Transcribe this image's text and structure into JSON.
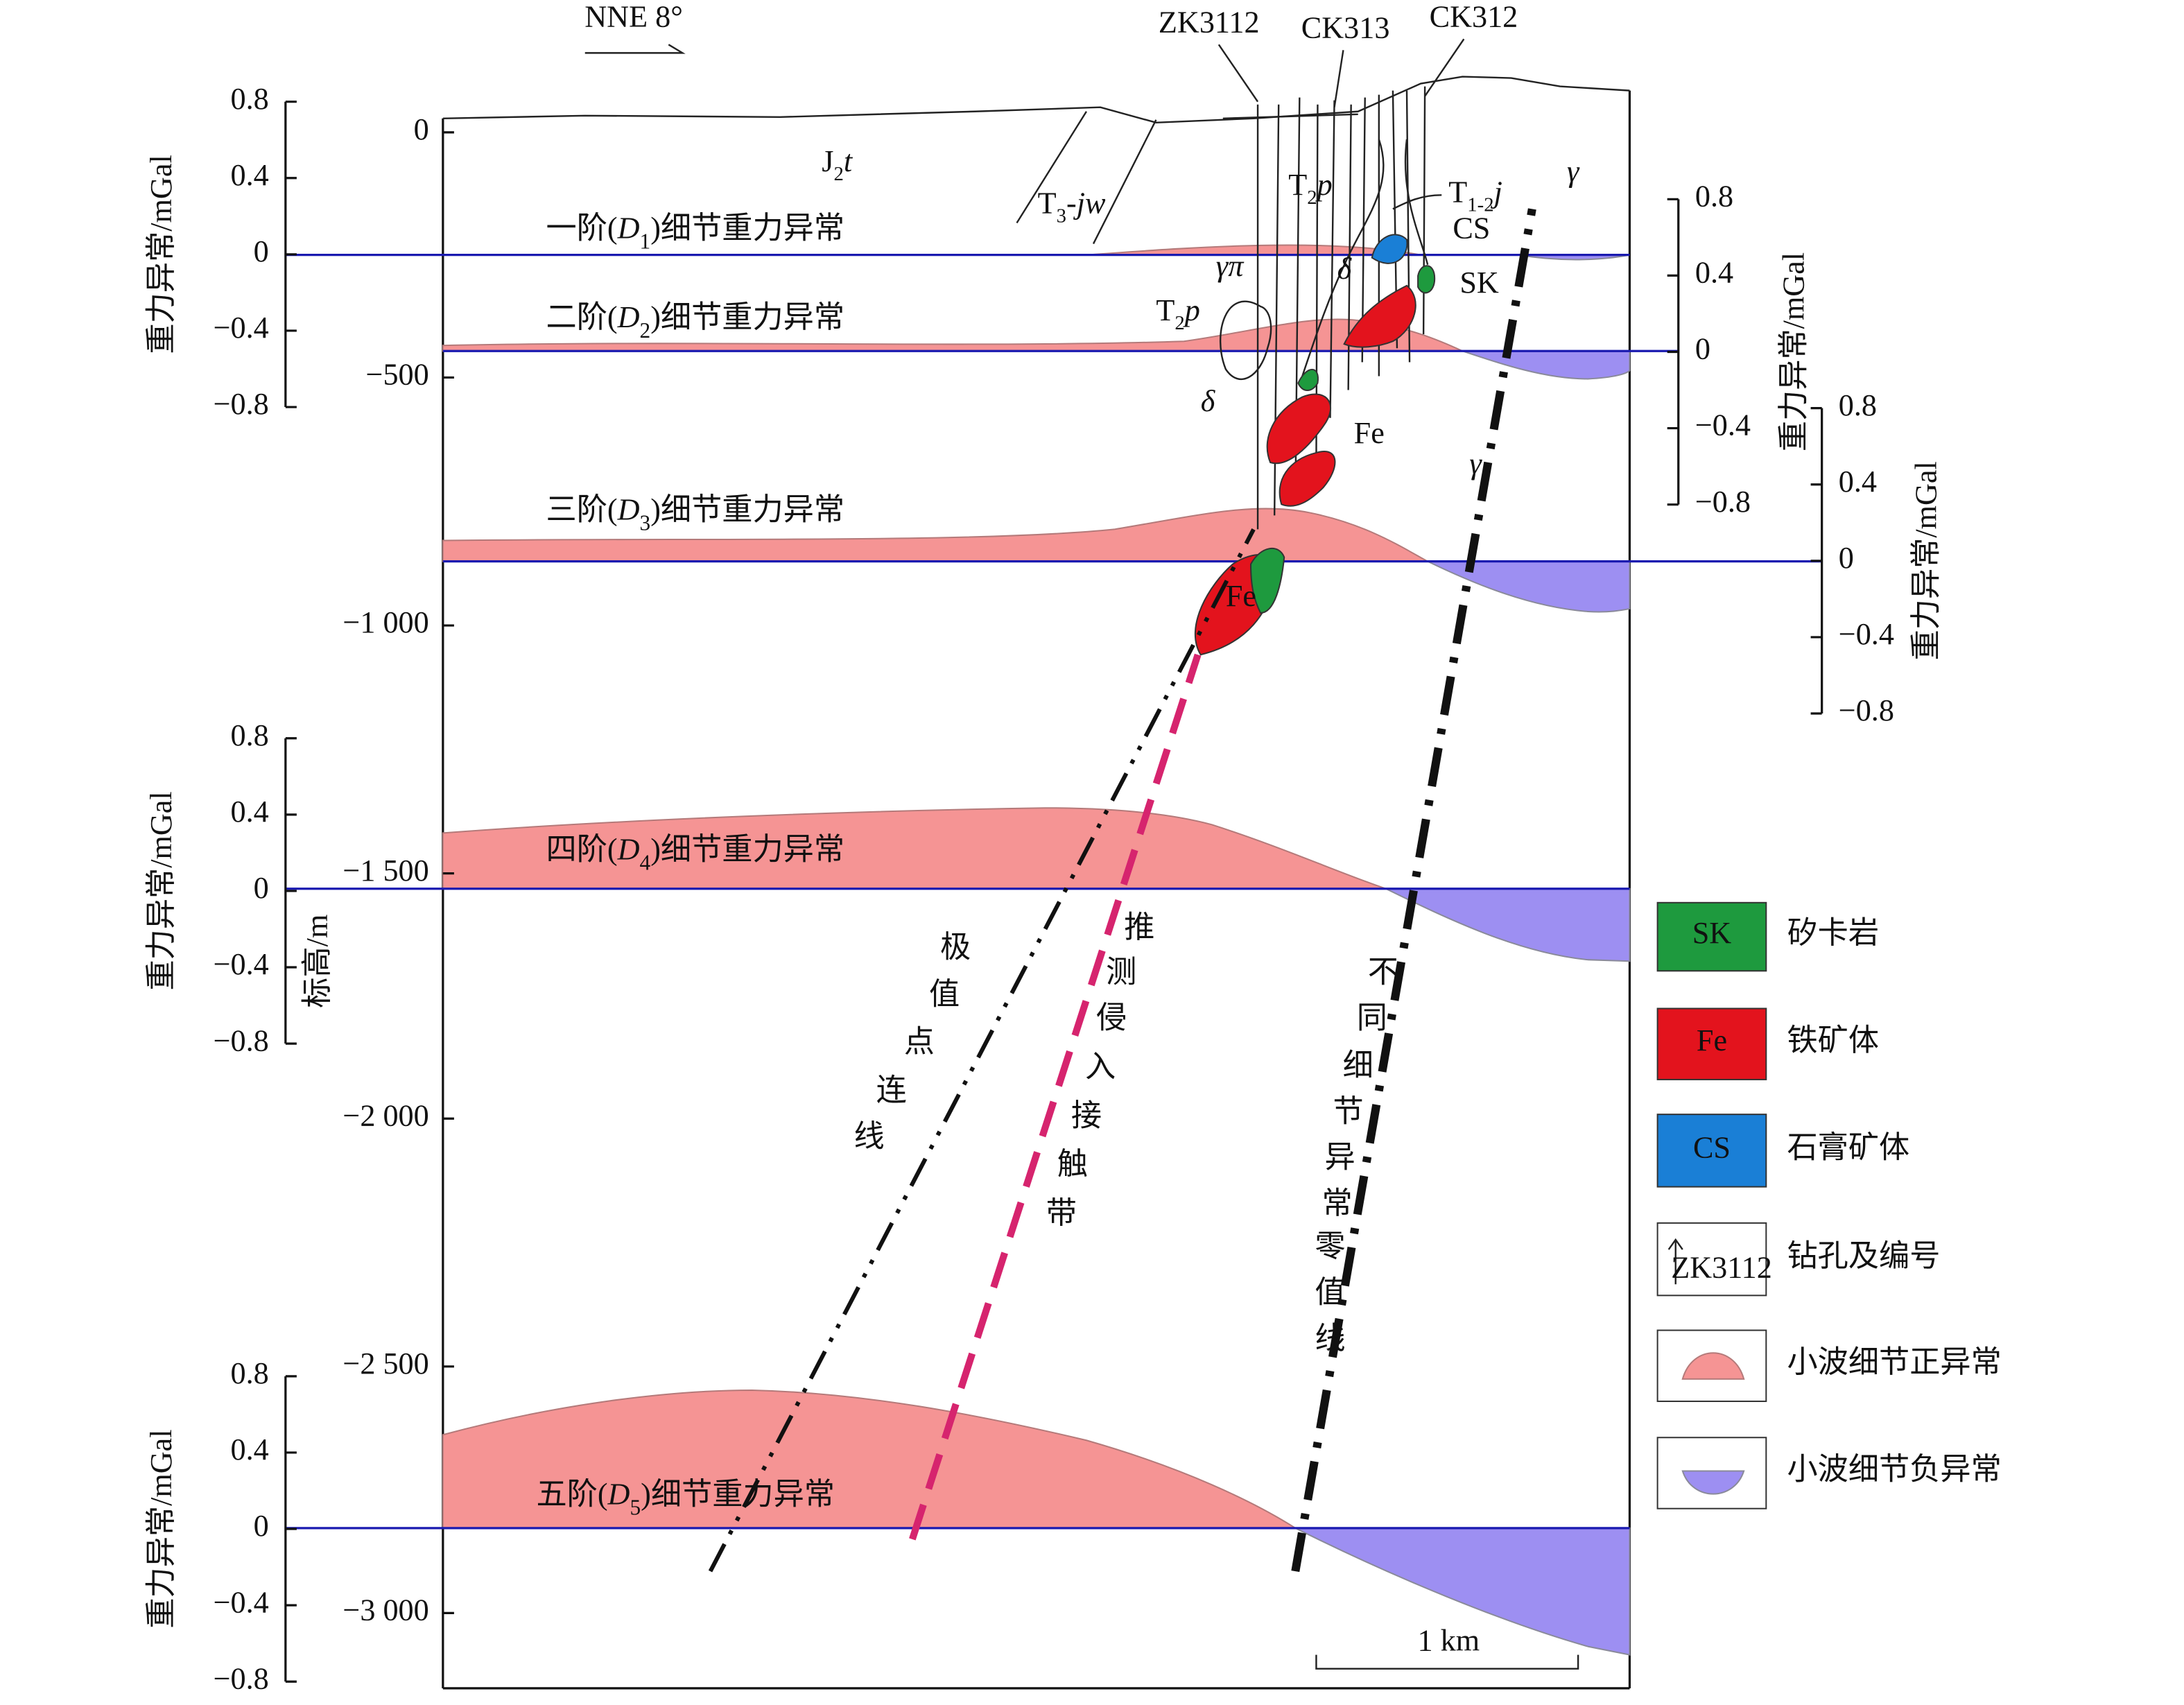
{
  "direction": "NNE 8°",
  "drillholes": [
    "ZK3112",
    "CK313",
    "CK312"
  ],
  "elevation_axis": {
    "title": "标高/m",
    "ticks": [
      "0",
      "−500",
      "−1 000",
      "−1 500",
      "−2 000",
      "−2 500",
      "−3 000"
    ]
  },
  "anomaly_axes": [
    {
      "title": "重力异常/mGal",
      "ticks": [
        "0.8",
        "0.4",
        "0",
        "−0.4",
        "−0.8"
      ]
    },
    {
      "title": "重力异常/mGal",
      "ticks": [
        "0.8",
        "0.4",
        "0",
        "−0.4",
        "−0.8"
      ]
    },
    {
      "title": "重力异常/mGal",
      "ticks": [
        "0.8",
        "0.4",
        "0",
        "−0.4",
        "−0.8"
      ]
    },
    {
      "title": "重力异常/mGal",
      "ticks": [
        "0.8",
        "0.4",
        "0",
        "−0.4",
        "−0.8"
      ]
    },
    {
      "title": "重力异常/mGal",
      "ticks": [
        "0.8",
        "0.4",
        "0",
        "−0.4",
        "−0.8"
      ]
    }
  ],
  "levels": [
    {
      "label": [
        "一阶(",
        "D",
        "1",
        ")细节重力异常"
      ]
    },
    {
      "label": [
        "二阶(",
        "D",
        "2",
        ")细节重力异常"
      ]
    },
    {
      "label": [
        "三阶(",
        "D",
        "3",
        ")细节重力异常"
      ]
    },
    {
      "label": [
        "四阶(",
        "D",
        "4",
        ")细节重力异常"
      ]
    },
    {
      "label": [
        "五阶(",
        "D",
        "5",
        ")细节重力异常"
      ]
    }
  ],
  "geology_labels": {
    "j2t": [
      "J",
      "2",
      "t"
    ],
    "t3jw": [
      "T",
      "3",
      "-jw"
    ],
    "t2p_upper": [
      "T",
      "2",
      "p"
    ],
    "t12j": [
      "T",
      "1-2",
      "j"
    ],
    "t2p_left": [
      "T",
      "2",
      "p"
    ],
    "gamma_pi": "γπ",
    "delta_upper": "δ",
    "delta_lower": "δ",
    "gamma_upper": "γ",
    "gamma_lower": "γ",
    "cs": "CS",
    "sk": "SK",
    "fe_upper": "Fe",
    "fe_lower": "Fe"
  },
  "line_labels": [
    "极值点连线",
    "推测侵入接触带",
    "不同细节异常零值线"
  ],
  "scale_bar": "1 km",
  "legend": [
    {
      "code": "SK",
      "label": "矽卡岩"
    },
    {
      "code": "Fe",
      "label": "铁矿体"
    },
    {
      "code": "CS",
      "label": "石膏矿体"
    },
    {
      "code": "ZK3112",
      "label": "钻孔及编号"
    },
    {
      "label": "小波细节正异常"
    },
    {
      "label": "小波细节负异常"
    }
  ]
}
